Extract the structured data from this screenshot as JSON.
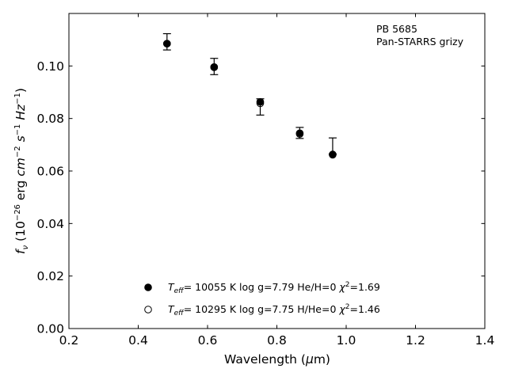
{
  "chart_data": {
    "type": "scatter",
    "xlabel": "Wavelength (μm)",
    "ylabel": "f_ν (10^-26 erg cm^-2 s^-1 Hz^-1)",
    "xlim": [
      0.2,
      1.4
    ],
    "ylim": [
      0.0,
      0.12
    ],
    "xticks": [
      "0.2",
      "0.4",
      "0.6",
      "0.8",
      "1.0",
      "1.2",
      "1.4"
    ],
    "yticks": [
      "0.00",
      "0.02",
      "0.04",
      "0.06",
      "0.08",
      "0.10"
    ],
    "grid": false,
    "annotation": [
      "PB 5685",
      "Pan-STARRS grizy"
    ],
    "observed": {
      "x": [
        0.483,
        0.619,
        0.752,
        0.866,
        0.961
      ],
      "y": [
        0.1092,
        0.0998,
        0.0844,
        0.0745,
        0.0695
      ],
      "yerr": [
        0.0031,
        0.0031,
        0.0031,
        0.0021,
        0.0031
      ]
    },
    "series": [
      {
        "name": "T_eff= 10055 K  log g=7.79  He/H=0  χ²=1.69",
        "marker": "filled-circle",
        "x": [
          0.483,
          0.619,
          0.752,
          0.866,
          0.961
        ],
        "y": [
          0.1085,
          0.0995,
          0.0863,
          0.0744,
          0.0662
        ]
      },
      {
        "name": "T_eff= 10295 K  log g=7.75  H/He=0  χ²=1.46",
        "marker": "open-circle",
        "x": [
          0.483,
          0.619,
          0.752,
          0.866,
          0.961
        ],
        "y": [
          0.1085,
          0.0996,
          0.0858,
          0.0741,
          0.0663
        ]
      }
    ],
    "legend_position": "bottom-center",
    "legend": [
      {
        "marker": "filled-circle",
        "teff": "= 10055 K  log g=7.79  He/H=0  ",
        "chi": "=1.69"
      },
      {
        "marker": "open-circle",
        "teff": "= 10295 K  log g=7.75  H/He=0  ",
        "chi": "=1.46"
      }
    ]
  }
}
